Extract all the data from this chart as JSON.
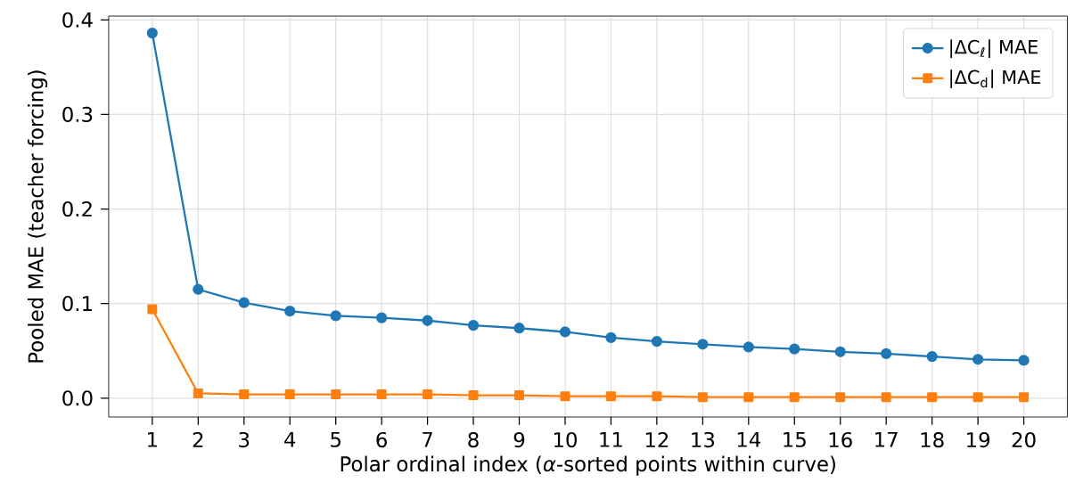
{
  "chart_data": {
    "type": "line",
    "xlabel": "Polar ordinal index (*α*-sorted points within curve)",
    "ylabel": "Pooled MAE (teacher forcing)",
    "x": [
      1,
      2,
      3,
      4,
      5,
      6,
      7,
      8,
      9,
      10,
      11,
      12,
      13,
      14,
      15,
      16,
      17,
      18,
      19,
      20
    ],
    "series": [
      {
        "name": "|ΔC$_{ℓ}$| MAE",
        "color": "#1f77b4",
        "marker": "circle",
        "values": [
          0.386,
          0.115,
          0.101,
          0.092,
          0.087,
          0.085,
          0.082,
          0.077,
          0.074,
          0.07,
          0.064,
          0.06,
          0.057,
          0.054,
          0.052,
          0.049,
          0.047,
          0.044,
          0.041,
          0.04
        ]
      },
      {
        "name": "|ΔC$_{d}$| MAE",
        "color": "#ff7f0e",
        "marker": "square",
        "values": [
          0.094,
          0.005,
          0.004,
          0.004,
          0.004,
          0.004,
          0.004,
          0.003,
          0.003,
          0.002,
          0.002,
          0.002,
          0.001,
          0.001,
          0.001,
          0.001,
          0.001,
          0.001,
          0.001,
          0.001
        ]
      }
    ],
    "xlim": [
      0.05,
      20.95
    ],
    "ylim": [
      -0.02,
      0.404
    ],
    "xticks": [
      1,
      2,
      3,
      4,
      5,
      6,
      7,
      8,
      9,
      10,
      11,
      12,
      13,
      14,
      15,
      16,
      17,
      18,
      19,
      20
    ],
    "yticks": [
      {
        "value": 0,
        "label": "0.0"
      },
      0.1,
      0.2,
      0.3,
      0.4
    ],
    "grid": true,
    "legend": "top right",
    "line_style": "solid"
  }
}
